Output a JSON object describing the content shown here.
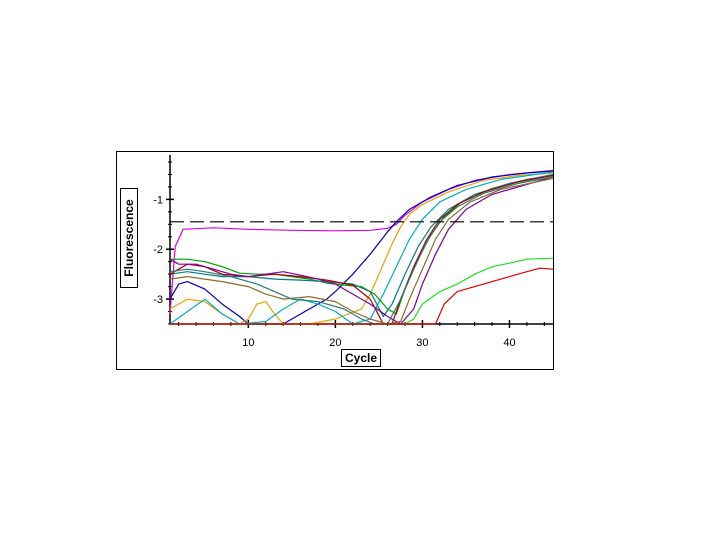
{
  "chart_data": {
    "type": "line",
    "xlabel": "Cycle",
    "ylabel": "Fluorescence",
    "xlim": [
      1,
      45
    ],
    "ylim": [
      -3.5,
      -0.25
    ],
    "x_ticks": [
      10,
      20,
      30,
      40
    ],
    "y_ticks": [
      -1,
      -2,
      -3
    ],
    "x_tick_labels": [
      "10",
      "20",
      "30",
      "40"
    ],
    "y_tick_labels": [
      "-1",
      "-2",
      "-3"
    ],
    "threshold": -1.45,
    "grid": false,
    "legend": "none",
    "series": [
      {
        "color": "#e000e0",
        "points": [
          [
            1,
            -3.3
          ],
          [
            1.6,
            -1.95
          ],
          [
            2.5,
            -1.6
          ],
          [
            6,
            -1.57
          ],
          [
            10,
            -1.6
          ],
          [
            15,
            -1.62
          ],
          [
            20,
            -1.63
          ],
          [
            24,
            -1.62
          ],
          [
            26,
            -1.58
          ],
          [
            27,
            -1.5
          ],
          [
            28,
            -1.32
          ],
          [
            30,
            -1.05
          ],
          [
            33,
            -0.8
          ],
          [
            36,
            -0.62
          ],
          [
            40,
            -0.5
          ],
          [
            45,
            -0.42
          ]
        ]
      },
      {
        "color": "#0000c0",
        "points": [
          [
            1,
            -3.0
          ],
          [
            2,
            -2.7
          ],
          [
            3,
            -2.65
          ],
          [
            5,
            -2.8
          ],
          [
            7,
            -3.1
          ],
          [
            9,
            -3.35
          ],
          [
            10,
            -3.5
          ],
          [
            14,
            -3.5
          ],
          [
            17,
            -3.2
          ],
          [
            19,
            -3.0
          ],
          [
            20,
            -2.85
          ],
          [
            22,
            -2.5
          ],
          [
            24,
            -2.1
          ],
          [
            26,
            -1.65
          ],
          [
            27,
            -1.45
          ],
          [
            28.5,
            -1.2
          ],
          [
            31,
            -0.95
          ],
          [
            34,
            -0.72
          ],
          [
            38,
            -0.55
          ],
          [
            42,
            -0.47
          ],
          [
            45,
            -0.43
          ]
        ]
      },
      {
        "color": "#f0a000",
        "points": [
          [
            1,
            -3.2
          ],
          [
            3,
            -3.0
          ],
          [
            5,
            -3.05
          ],
          [
            7,
            -3.3
          ],
          [
            9,
            -3.5
          ],
          [
            10,
            -3.4
          ],
          [
            11,
            -3.1
          ],
          [
            12,
            -3.05
          ],
          [
            13,
            -3.3
          ],
          [
            14,
            -3.5
          ],
          [
            17,
            -3.5
          ],
          [
            20,
            -3.4
          ],
          [
            23,
            -3.2
          ],
          [
            24,
            -2.9
          ],
          [
            25,
            -2.5
          ],
          [
            26.5,
            -1.9
          ],
          [
            27.5,
            -1.55
          ],
          [
            28.5,
            -1.3
          ],
          [
            30,
            -1.1
          ],
          [
            33,
            -0.85
          ],
          [
            37,
            -0.62
          ],
          [
            41,
            -0.52
          ],
          [
            45,
            -0.47
          ]
        ]
      },
      {
        "color": "#00b0c0",
        "points": [
          [
            1,
            -3.5
          ],
          [
            3,
            -3.25
          ],
          [
            5,
            -3.0
          ],
          [
            7,
            -3.3
          ],
          [
            9,
            -3.5
          ],
          [
            12,
            -3.45
          ],
          [
            14,
            -3.2
          ],
          [
            16,
            -3.0
          ],
          [
            18,
            -3.1
          ],
          [
            20,
            -3.25
          ],
          [
            22,
            -3.5
          ],
          [
            24,
            -3.4
          ],
          [
            25.5,
            -2.9
          ],
          [
            27,
            -2.35
          ],
          [
            28.5,
            -1.8
          ],
          [
            30,
            -1.4
          ],
          [
            32,
            -1.05
          ],
          [
            35,
            -0.8
          ],
          [
            39,
            -0.6
          ],
          [
            45,
            -0.45
          ]
        ]
      },
      {
        "color": "#00a000",
        "points": [
          [
            1,
            -2.2
          ],
          [
            3,
            -2.2
          ],
          [
            5,
            -2.25
          ],
          [
            7,
            -2.35
          ],
          [
            9,
            -2.48
          ],
          [
            11,
            -2.5
          ],
          [
            13,
            -2.5
          ],
          [
            15,
            -2.55
          ],
          [
            17,
            -2.6
          ],
          [
            19,
            -2.68
          ],
          [
            21,
            -2.72
          ],
          [
            23,
            -2.75
          ],
          [
            24.5,
            -2.9
          ],
          [
            26,
            -3.2
          ],
          [
            27,
            -3.3
          ],
          [
            28,
            -2.8
          ],
          [
            29.5,
            -2.2
          ],
          [
            31,
            -1.7
          ],
          [
            32.5,
            -1.35
          ],
          [
            34.5,
            -1.05
          ],
          [
            38,
            -0.78
          ],
          [
            42,
            -0.6
          ],
          [
            45,
            -0.52
          ]
        ]
      },
      {
        "color": "#008080",
        "points": [
          [
            1,
            -2.5
          ],
          [
            3,
            -2.45
          ],
          [
            5,
            -2.5
          ],
          [
            7,
            -2.55
          ],
          [
            10,
            -2.55
          ],
          [
            13,
            -2.6
          ],
          [
            16,
            -2.62
          ],
          [
            19,
            -2.65
          ],
          [
            22,
            -2.7
          ],
          [
            24,
            -2.85
          ],
          [
            25.5,
            -3.35
          ],
          [
            26.5,
            -3.1
          ],
          [
            28,
            -2.5
          ],
          [
            29.5,
            -1.95
          ],
          [
            31,
            -1.55
          ],
          [
            33,
            -1.2
          ],
          [
            36,
            -0.9
          ],
          [
            40,
            -0.68
          ],
          [
            45,
            -0.5
          ]
        ]
      },
      {
        "color": "#b00000",
        "points": [
          [
            1,
            -2.5
          ],
          [
            3,
            -2.3
          ],
          [
            5,
            -2.35
          ],
          [
            7,
            -2.5
          ],
          [
            10,
            -2.55
          ],
          [
            13,
            -2.5
          ],
          [
            16,
            -2.55
          ],
          [
            19,
            -2.62
          ],
          [
            22,
            -2.72
          ],
          [
            24,
            -3.0
          ],
          [
            25.5,
            -3.5
          ],
          [
            26.5,
            -3.5
          ],
          [
            27.5,
            -3.0
          ],
          [
            29,
            -2.35
          ],
          [
            30.5,
            -1.8
          ],
          [
            32,
            -1.4
          ],
          [
            34,
            -1.1
          ],
          [
            37,
            -0.85
          ],
          [
            41,
            -0.65
          ],
          [
            45,
            -0.52
          ]
        ]
      },
      {
        "color": "#8000a0",
        "points": [
          [
            1,
            -2.2
          ],
          [
            2,
            -2.3
          ],
          [
            4,
            -2.3
          ],
          [
            6,
            -2.4
          ],
          [
            8,
            -2.5
          ],
          [
            10,
            -2.55
          ],
          [
            12,
            -2.5
          ],
          [
            14,
            -2.45
          ],
          [
            16,
            -2.52
          ],
          [
            18,
            -2.6
          ],
          [
            20,
            -2.7
          ],
          [
            22,
            -2.9
          ],
          [
            24,
            -3.1
          ],
          [
            26,
            -3.35
          ],
          [
            27.5,
            -3.5
          ],
          [
            29,
            -3.2
          ],
          [
            30,
            -2.7
          ],
          [
            31.5,
            -2.1
          ],
          [
            33,
            -1.6
          ],
          [
            35,
            -1.2
          ],
          [
            38,
            -0.9
          ],
          [
            42,
            -0.7
          ],
          [
            45,
            -0.55
          ]
        ]
      },
      {
        "color": "#8a6d2a",
        "points": [
          [
            1,
            -2.6
          ],
          [
            3,
            -2.55
          ],
          [
            5,
            -2.6
          ],
          [
            7,
            -2.65
          ],
          [
            10,
            -2.75
          ],
          [
            12,
            -2.9
          ],
          [
            14,
            -3.0
          ],
          [
            17,
            -2.95
          ],
          [
            20,
            -3.05
          ],
          [
            22,
            -3.25
          ],
          [
            24,
            -3.4
          ],
          [
            26,
            -3.5
          ],
          [
            27.5,
            -3.45
          ],
          [
            28.5,
            -3.0
          ],
          [
            30,
            -2.4
          ],
          [
            31.5,
            -1.8
          ],
          [
            33,
            -1.4
          ],
          [
            35.5,
            -1.05
          ],
          [
            39,
            -0.8
          ],
          [
            45,
            -0.58
          ]
        ]
      },
      {
        "color": "#2a7a7a",
        "points": [
          [
            1,
            -2.45
          ],
          [
            3,
            -2.4
          ],
          [
            5,
            -2.45
          ],
          [
            8,
            -2.55
          ],
          [
            11,
            -2.7
          ],
          [
            13,
            -2.85
          ],
          [
            15,
            -3.0
          ],
          [
            18,
            -3.05
          ],
          [
            21,
            -3.2
          ],
          [
            23,
            -3.4
          ],
          [
            24.5,
            -3.5
          ],
          [
            26,
            -3.5
          ],
          [
            27.5,
            -3.0
          ],
          [
            29,
            -2.4
          ],
          [
            30.5,
            -1.85
          ],
          [
            32,
            -1.45
          ],
          [
            34,
            -1.15
          ],
          [
            37,
            -0.88
          ],
          [
            41,
            -0.68
          ],
          [
            45,
            -0.55
          ]
        ]
      },
      {
        "color": "#20e020",
        "points": [
          [
            1,
            -3.5
          ],
          [
            4,
            -3.5
          ],
          [
            8,
            -3.5
          ],
          [
            12,
            -3.5
          ],
          [
            16,
            -3.5
          ],
          [
            20,
            -3.5
          ],
          [
            24,
            -3.5
          ],
          [
            28,
            -3.5
          ],
          [
            29,
            -3.4
          ],
          [
            30,
            -3.1
          ],
          [
            32,
            -2.85
          ],
          [
            34,
            -2.7
          ],
          [
            36,
            -2.5
          ],
          [
            38,
            -2.35
          ],
          [
            40,
            -2.28
          ],
          [
            42,
            -2.2
          ],
          [
            45,
            -2.18
          ]
        ]
      },
      {
        "color": "#e00000",
        "points": [
          [
            1,
            -3.5
          ],
          [
            6,
            -3.5
          ],
          [
            12,
            -3.5
          ],
          [
            18,
            -3.5
          ],
          [
            24,
            -3.5
          ],
          [
            30,
            -3.5
          ],
          [
            31.5,
            -3.5
          ],
          [
            32.5,
            -3.1
          ],
          [
            34,
            -2.85
          ],
          [
            36,
            -2.75
          ],
          [
            38,
            -2.65
          ],
          [
            40,
            -2.55
          ],
          [
            42,
            -2.45
          ],
          [
            43.5,
            -2.38
          ],
          [
            45,
            -2.4
          ]
        ]
      }
    ]
  }
}
